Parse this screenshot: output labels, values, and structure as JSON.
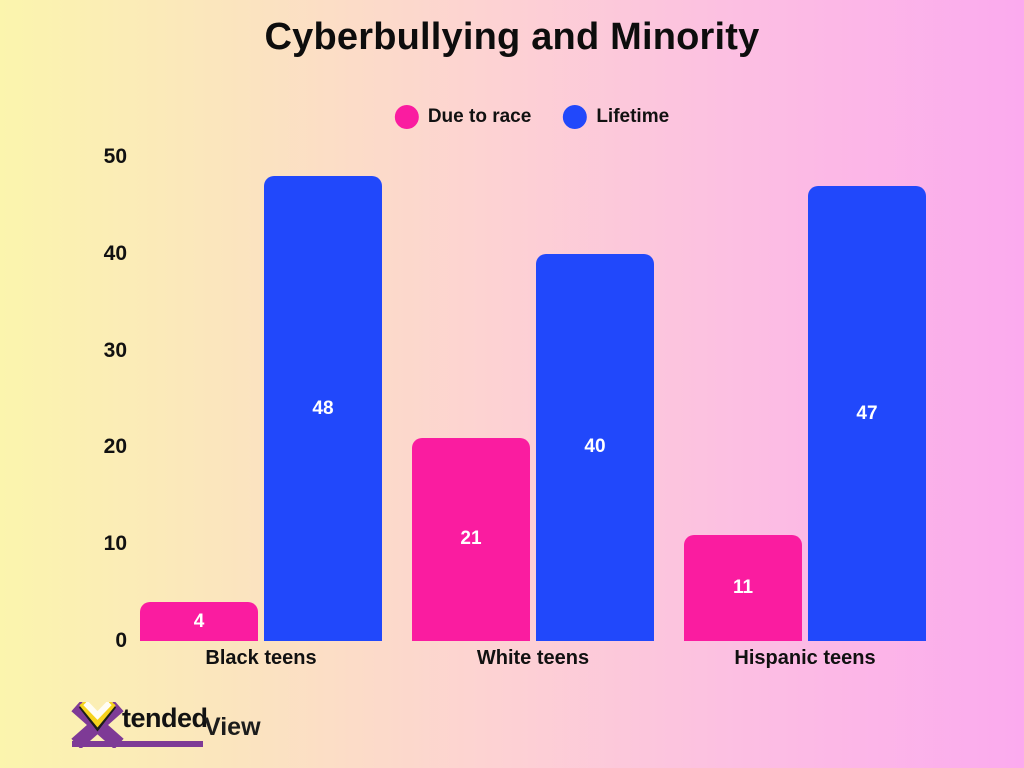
{
  "title": "Cyberbullying and Minority",
  "chart_data": {
    "type": "bar",
    "title": "Cyberbullying and Minority",
    "categories": [
      "Black teens",
      "White teens",
      "Hispanic teens"
    ],
    "series": [
      {
        "name": "Due to race",
        "color": "#fa1ca0",
        "values": [
          4,
          21,
          11
        ]
      },
      {
        "name": "Lifetime",
        "color": "#2148fb",
        "values": [
          48,
          40,
          47
        ]
      }
    ],
    "y_ticks": [
      0,
      10,
      20,
      30,
      40,
      50
    ],
    "ylim": [
      0,
      50
    ],
    "grid": false,
    "axis_lines": false,
    "legend_position": "top-center",
    "value_labels": "inside-center-white"
  },
  "logo": {
    "x_letter": "X",
    "tended": "tended",
    "view": "View",
    "purple": "#7e3a96",
    "yellow": "#f6d31d",
    "white": "#fffdf4",
    "dark": "#1c1c1c"
  },
  "colors": {
    "background_left": "#fbf5ad",
    "background_middle": "#fdd3d2",
    "background_right": "#fbaaee",
    "text": "#111111",
    "value_label": "#ffffff"
  }
}
